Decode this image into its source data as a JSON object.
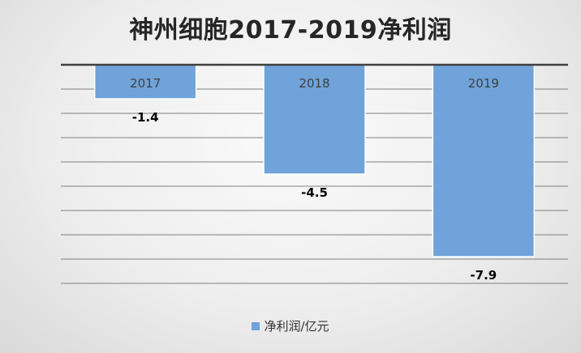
{
  "chart_data": {
    "type": "bar",
    "title": "神州细胞2017-2019净利润",
    "categories": [
      "2017",
      "2018",
      "2019"
    ],
    "series": [
      {
        "name": "净利润/亿元",
        "values": [
          -1.4,
          -4.5,
          -7.9
        ],
        "labels": [
          "-1.4",
          "-4.5",
          "-7.9"
        ]
      }
    ],
    "ylim": [
      -9,
      0
    ],
    "grid": true,
    "legend_position": "bottom",
    "bar_color": "#6FA3D9",
    "bar_edge_color": "#ffffff",
    "axis_color": "#404040",
    "grid_color": "#7f7f7f"
  }
}
